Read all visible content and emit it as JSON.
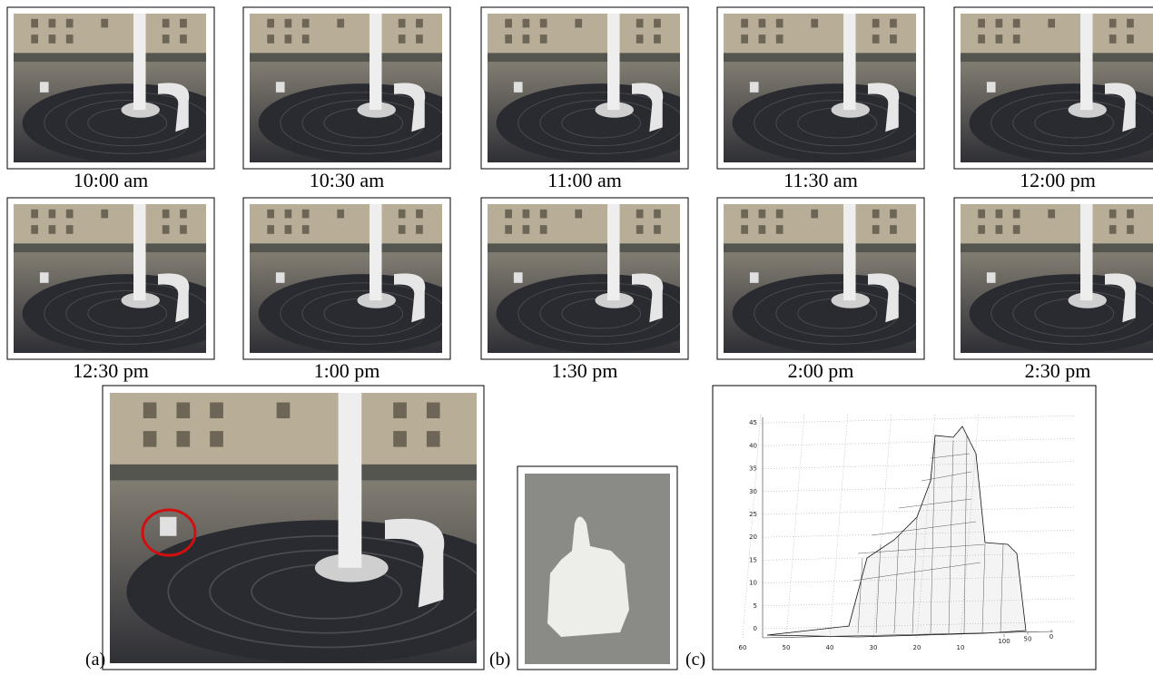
{
  "frames": [
    {
      "label": "10:00 am"
    },
    {
      "label": "10:30 am"
    },
    {
      "label": "11:00 am"
    },
    {
      "label": "11:30 am"
    },
    {
      "label": "12:00 pm"
    },
    {
      "label": "12:30 pm"
    },
    {
      "label": "1:00 pm"
    },
    {
      "label": "1:30 pm"
    },
    {
      "label": "2:00 pm"
    },
    {
      "label": "2:30 pm"
    }
  ],
  "panels": [
    "(a)",
    "(b)",
    "(c)"
  ],
  "surface_plot": {
    "zticks": [
      0,
      5,
      10,
      15,
      20,
      25,
      30,
      35,
      40,
      45
    ],
    "xticks": [
      60,
      50,
      40,
      30,
      20,
      10
    ],
    "yticks": [
      100,
      50,
      0
    ]
  }
}
